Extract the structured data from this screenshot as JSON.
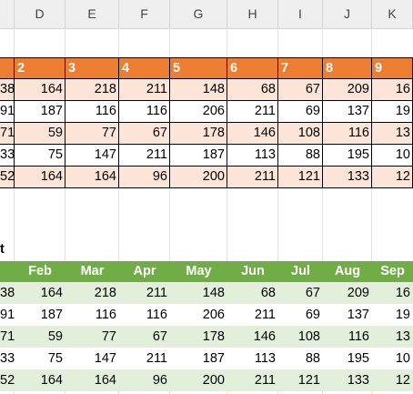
{
  "columns": [
    "D",
    "E",
    "F",
    "G",
    "H",
    "I",
    "J",
    "K"
  ],
  "table1": {
    "headers": [
      "",
      "2",
      "3",
      "4",
      "5",
      "6",
      "7",
      "8",
      "9"
    ],
    "rows": [
      [
        "38",
        "164",
        "218",
        "211",
        "148",
        "68",
        "67",
        "209",
        "16"
      ],
      [
        "91",
        "187",
        "116",
        "116",
        "206",
        "211",
        "69",
        "137",
        "19"
      ],
      [
        "71",
        "59",
        "77",
        "67",
        "178",
        "146",
        "108",
        "116",
        "13"
      ],
      [
        "33",
        "75",
        "147",
        "211",
        "187",
        "113",
        "88",
        "195",
        "10"
      ],
      [
        "52",
        "164",
        "164",
        "96",
        "200",
        "211",
        "121",
        "133",
        "12"
      ]
    ]
  },
  "label": "t",
  "table2": {
    "headers": [
      "",
      "Feb",
      "Mar",
      "Apr",
      "May",
      "Jun",
      "Jul",
      "Aug",
      "Sep"
    ],
    "rows": [
      [
        "38",
        "164",
        "218",
        "211",
        "148",
        "68",
        "67",
        "209",
        "16"
      ],
      [
        "91",
        "187",
        "116",
        "116",
        "206",
        "211",
        "69",
        "137",
        "19"
      ],
      [
        "71",
        "59",
        "77",
        "67",
        "178",
        "146",
        "108",
        "116",
        "13"
      ],
      [
        "33",
        "75",
        "147",
        "211",
        "187",
        "113",
        "88",
        "195",
        "10"
      ],
      [
        "52",
        "164",
        "164",
        "96",
        "200",
        "211",
        "121",
        "133",
        "12"
      ]
    ]
  },
  "colors": {
    "table1_header": "#ED7D31",
    "table1_band": "#FCE4D6",
    "table2_header": "#70AD47",
    "table2_band": "#E2EFDA"
  }
}
